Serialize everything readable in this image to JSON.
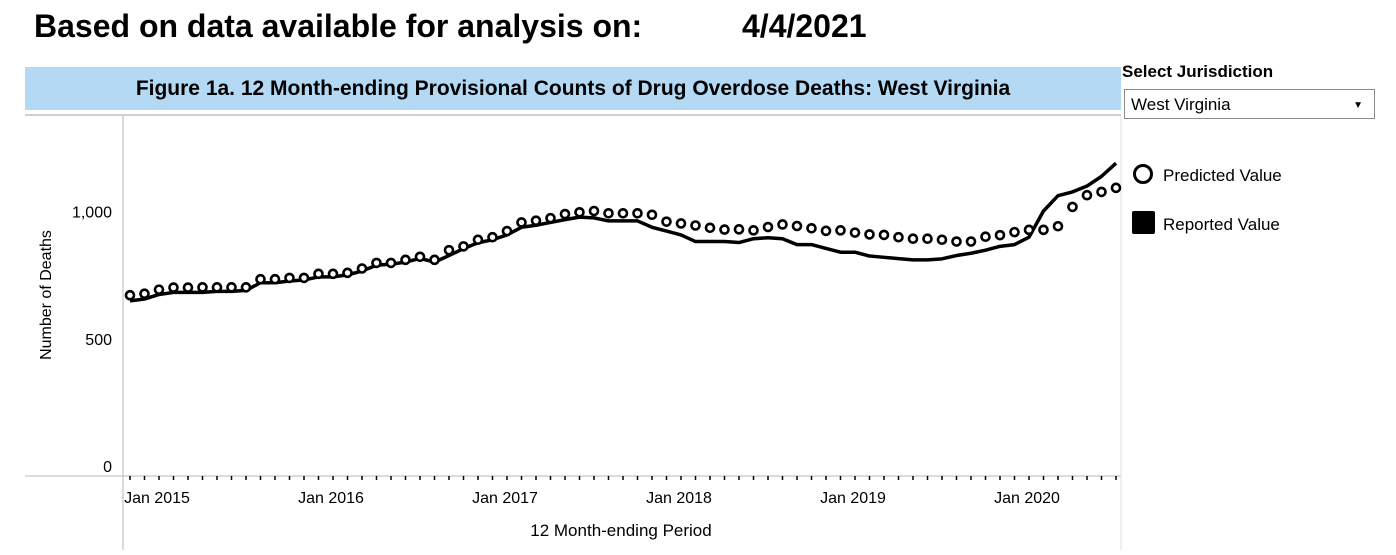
{
  "header": {
    "label": "Based on data available for analysis on:",
    "date": "4/4/2021"
  },
  "figure_title": "Figure 1a. 12 Month-ending Provisional Counts of Drug Overdose Deaths: West Virginia",
  "selector": {
    "label": "Select Jurisdiction",
    "value": "West Virginia"
  },
  "legend": {
    "predicted": "Predicted Value",
    "reported": "Reported Value"
  },
  "chart_data": {
    "type": "line",
    "title": "Figure 1a. 12 Month-ending Provisional Counts of Drug Overdose Deaths: West Virginia",
    "xlabel": "12 Month-ending Period",
    "ylabel": "Number of Deaths",
    "y_ticks": [
      {
        "value": 0,
        "label": "0"
      },
      {
        "value": 500,
        "label": "500"
      },
      {
        "value": 1000,
        "label": "1,000"
      }
    ],
    "ylim": [
      0,
      1400
    ],
    "x_ticks": [
      {
        "value": "2015-01",
        "label": "Jan 2015"
      },
      {
        "value": "2016-01",
        "label": "Jan 2016"
      },
      {
        "value": "2017-01",
        "label": "Jan 2017"
      },
      {
        "value": "2018-01",
        "label": "Jan 2018"
      },
      {
        "value": "2019-01",
        "label": "Jan 2019"
      },
      {
        "value": "2020-01",
        "label": "Jan 2020"
      }
    ],
    "xlim": [
      "2015-01",
      "2020-09"
    ],
    "x": [
      "2015-01",
      "2015-02",
      "2015-03",
      "2015-04",
      "2015-05",
      "2015-06",
      "2015-07",
      "2015-08",
      "2015-09",
      "2015-10",
      "2015-11",
      "2015-12",
      "2016-01",
      "2016-02",
      "2016-03",
      "2016-04",
      "2016-05",
      "2016-06",
      "2016-07",
      "2016-08",
      "2016-09",
      "2016-10",
      "2016-11",
      "2016-12",
      "2017-01",
      "2017-02",
      "2017-03",
      "2017-04",
      "2017-05",
      "2017-06",
      "2017-07",
      "2017-08",
      "2017-09",
      "2017-10",
      "2017-11",
      "2017-12",
      "2018-01",
      "2018-02",
      "2018-03",
      "2018-04",
      "2018-05",
      "2018-06",
      "2018-07",
      "2018-08",
      "2018-09",
      "2018-10",
      "2018-11",
      "2018-12",
      "2019-01",
      "2019-02",
      "2019-03",
      "2019-04",
      "2019-05",
      "2019-06",
      "2019-07",
      "2019-08",
      "2019-09",
      "2019-10",
      "2019-11",
      "2019-12",
      "2020-01",
      "2020-02",
      "2020-03",
      "2020-04",
      "2020-05",
      "2020-06",
      "2020-07",
      "2020-08",
      "2020-09"
    ],
    "series": [
      {
        "name": "Predicted Value",
        "marker": "hollow-circle",
        "values": [
          671,
          677,
          693,
          701,
          701,
          702,
          702,
          702,
          702,
          734,
          734,
          739,
          739,
          755,
          755,
          759,
          776,
          798,
          798,
          810,
          822,
          810,
          848,
          863,
          889,
          899,
          923,
          957,
          964,
          974,
          990,
          997,
          1002,
          993,
          993,
          993,
          987,
          960,
          953,
          945,
          936,
          929,
          930,
          926,
          939,
          949,
          943,
          934,
          924,
          926,
          917,
          910,
          908,
          899,
          893,
          893,
          889,
          882,
          882,
          901,
          907,
          919,
          928,
          928,
          942,
          1018,
          1064,
          1077,
          1093
        ]
      },
      {
        "name": "Reported Value",
        "marker": "line",
        "values": [
          649,
          656,
          674,
          682,
          682,
          682,
          686,
          686,
          690,
          720,
          720,
          727,
          731,
          743,
          743,
          751,
          766,
          789,
          793,
          801,
          816,
          801,
          827,
          854,
          877,
          889,
          908,
          938,
          946,
          957,
          968,
          978,
          975,
          963,
          963,
          963,
          938,
          923,
          908,
          882,
          882,
          882,
          878,
          893,
          897,
          893,
          870,
          870,
          855,
          840,
          840,
          825,
          820,
          815,
          810,
          810,
          814,
          827,
          836,
          848,
          863,
          870,
          899,
          1002,
          1062,
          1077,
          1100,
          1138,
          1190
        ]
      }
    ],
    "grid": false,
    "legend_position": "right"
  }
}
